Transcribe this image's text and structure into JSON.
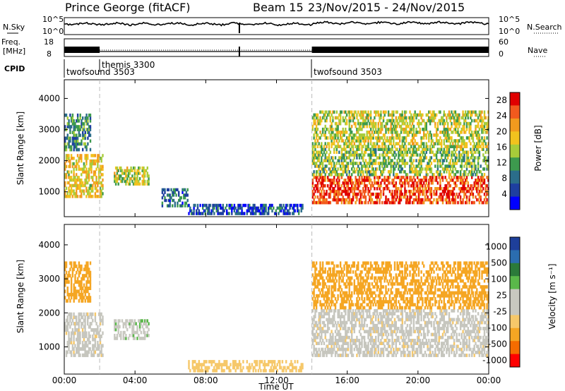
{
  "header": {
    "station": "Prince George (fitACF)",
    "beam": "Beam 15",
    "date_range": "23/Nov/2015 - 24/Nov/2015"
  },
  "top_panels": {
    "nsky_label": "N.Sky",
    "nsearch_label": "N.Search",
    "freq_label_1": "Freq.",
    "freq_label_2": "[MHz]",
    "nave_label": "Nave",
    "cpid_label": "CPID",
    "noise_ticks_left": [
      "10^5",
      "10^0"
    ],
    "noise_ticks_right": [
      "10^5",
      "10^0"
    ],
    "freq_ticks": [
      "18",
      "8"
    ],
    "nave_ticks": [
      "60",
      "0"
    ],
    "cpid_segments": [
      {
        "start_hour": 0.0,
        "end_hour": 2.0,
        "label": "twofsound 3503"
      },
      {
        "start_hour": 2.0,
        "end_hour": 14.0,
        "label": "themis 3300"
      },
      {
        "start_hour": 14.0,
        "end_hour": 24.0,
        "label": "twofsound 3503"
      }
    ]
  },
  "x_axis": {
    "label": "Time UT",
    "ticks": [
      "00:00",
      "04:00",
      "08:00",
      "12:00",
      "16:00",
      "20:00",
      "00:00"
    ]
  },
  "colors": {
    "power_scale": [
      "#0000ff",
      "#1e3fa0",
      "#2b6d8a",
      "#3d9a4e",
      "#a8cc3a",
      "#f2c21e",
      "#f29a1e",
      "#f25a1e",
      "#e00000"
    ],
    "velocity_scale": [
      "#ff0000",
      "#f56c00",
      "#f5a623",
      "#f6c86a",
      "#c8c8c0",
      "#c8c8c0",
      "#5ab84a",
      "#2b7a3a",
      "#2b6db0",
      "#1e3f9a"
    ],
    "gs_gray": "#c6c6be"
  },
  "chart_data": [
    {
      "type": "heatmap",
      "name": "power",
      "ylabel": "Slant Range [km]",
      "ylim": [
        200,
        4600
      ],
      "yticks": [
        "1000",
        "2000",
        "3000",
        "4000"
      ],
      "colorbar_label": "Power [dB]",
      "colorbar_ticks": [
        "4",
        "8",
        "12",
        "16",
        "20",
        "24",
        "28"
      ],
      "colorbar_range": [
        0,
        30
      ],
      "regions": [
        {
          "t0": 0.0,
          "t1": 2.2,
          "r0": 800,
          "r1": 2200,
          "level": 18
        },
        {
          "t0": 0.0,
          "t1": 1.5,
          "r0": 2300,
          "r1": 3500,
          "level": 10
        },
        {
          "t0": 2.8,
          "t1": 4.8,
          "r0": 1200,
          "r1": 1800,
          "level": 16
        },
        {
          "t0": 5.5,
          "t1": 7.0,
          "r0": 500,
          "r1": 1100,
          "level": 8
        },
        {
          "t0": 7.0,
          "t1": 13.5,
          "r0": 250,
          "r1": 600,
          "level": 6
        },
        {
          "t0": 14.0,
          "t1": 24.0,
          "r0": 600,
          "r1": 1500,
          "level": 26
        },
        {
          "t0": 14.0,
          "t1": 24.0,
          "r0": 1500,
          "r1": 2400,
          "level": 14
        },
        {
          "t0": 14.0,
          "t1": 24.0,
          "r0": 2400,
          "r1": 3600,
          "level": 16
        }
      ]
    },
    {
      "type": "heatmap",
      "name": "velocity",
      "ylabel": "Slant Range [km]",
      "ylim": [
        200,
        4600
      ],
      "yticks": [
        "1000",
        "2000",
        "3000",
        "4000"
      ],
      "colorbar_label": "Velocity [m s⁻¹]",
      "colorbar_ticks": [
        "1000",
        "500",
        "100",
        "25",
        "-25",
        "-100",
        "-500",
        "-1000"
      ],
      "regions": [
        {
          "t0": 0.0,
          "t1": 2.2,
          "r0": 700,
          "r1": 2000,
          "level": 0
        },
        {
          "t0": 0.0,
          "t1": 1.5,
          "r0": 2300,
          "r1": 3500,
          "level": -200
        },
        {
          "t0": 2.8,
          "t1": 4.8,
          "r0": 1200,
          "r1": 1800,
          "level": 80
        },
        {
          "t0": 7.0,
          "t1": 13.5,
          "r0": 250,
          "r1": 600,
          "level": -60
        },
        {
          "t0": 14.0,
          "t1": 24.0,
          "r0": 700,
          "r1": 2100,
          "level": 0
        },
        {
          "t0": 14.0,
          "t1": 24.0,
          "r0": 2100,
          "r1": 3500,
          "level": -250
        }
      ]
    }
  ]
}
